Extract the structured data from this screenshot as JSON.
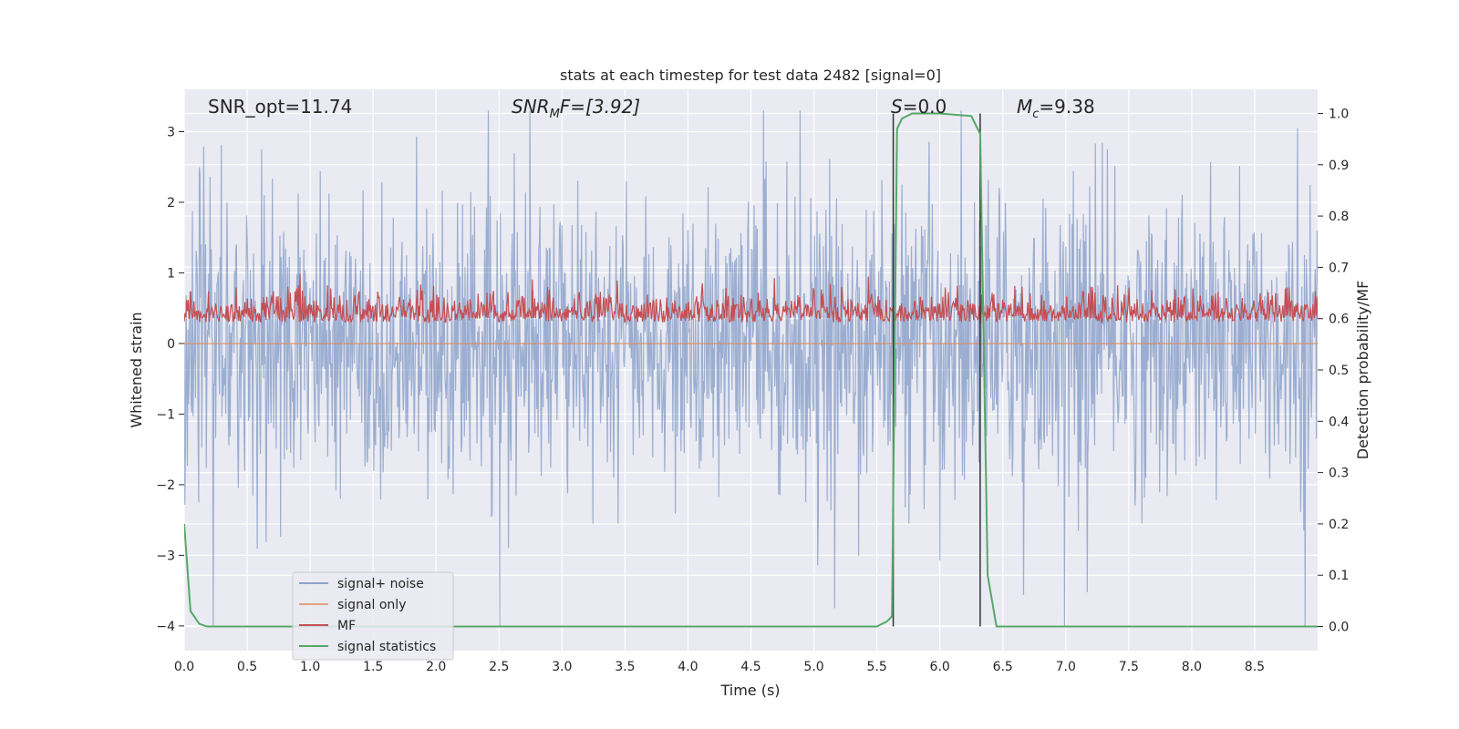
{
  "chart_data": {
    "type": "line",
    "title": "stats at each timestep for test data 2482 [signal=0]",
    "xlabel": "Time (s)",
    "ylabel_left": "Whitened strain",
    "ylabel_right": "Detection probability/MF",
    "xlim": [
      0,
      9.0
    ],
    "ylim_left": [
      -4.35,
      3.6
    ],
    "ylim_right": [
      -0.047,
      1.047
    ],
    "x_ticks": [
      "0.0",
      "0.5",
      "1.0",
      "1.5",
      "2.0",
      "2.5",
      "3.0",
      "3.5",
      "4.0",
      "4.5",
      "5.0",
      "5.5",
      "6.0",
      "6.5",
      "7.0",
      "7.5",
      "8.0",
      "8.5"
    ],
    "y_left_ticks": [
      "−4",
      "−3",
      "−2",
      "−1",
      "0",
      "1",
      "2",
      "3"
    ],
    "y_right_ticks": [
      "0.0",
      "0.1",
      "0.2",
      "0.3",
      "0.4",
      "0.5",
      "0.6",
      "0.7",
      "0.8",
      "0.9",
      "1.0"
    ],
    "grid": true,
    "background": "#eaeaf2",
    "annotations": {
      "snr_opt": "SNR_opt=11.74",
      "snr_mf_main": "SNR",
      "snr_mf_sub": "M",
      "snr_mf_rest": "F=[3.92]",
      "s_main": "S",
      "s_rest": "=0.0",
      "mc_main": "M",
      "mc_sub": "c",
      "mc_rest": "=9.38"
    },
    "vertical_lines": [
      5.63,
      6.32
    ],
    "legend_placement": "lower-left",
    "series": [
      {
        "name": "signal+ noise",
        "color": "#4c72b0",
        "axis": "left",
        "description_range": [
          -4.0,
          3.3
        ]
      },
      {
        "name": "signal only",
        "color": "#dd8452",
        "axis": "left",
        "value": 0.0
      },
      {
        "name": "MF",
        "color": "#c44e52",
        "axis": "left",
        "range": [
          0.0,
          1.0
        ]
      },
      {
        "name": "signal statistics",
        "color": "#55a868",
        "axis": "right",
        "x": [
          0.0,
          0.05,
          0.12,
          0.18,
          0.25,
          5.5,
          5.58,
          5.62,
          5.66,
          5.7,
          5.78,
          6.0,
          6.25,
          6.32,
          6.38,
          6.45,
          6.52,
          9.0
        ],
        "y": [
          0.2,
          0.03,
          0.005,
          0.0,
          0.0,
          0.0,
          0.01,
          0.02,
          0.97,
          0.99,
          1.0,
          1.0,
          0.995,
          0.96,
          0.1,
          0.0,
          0.0,
          0.0
        ]
      }
    ]
  }
}
